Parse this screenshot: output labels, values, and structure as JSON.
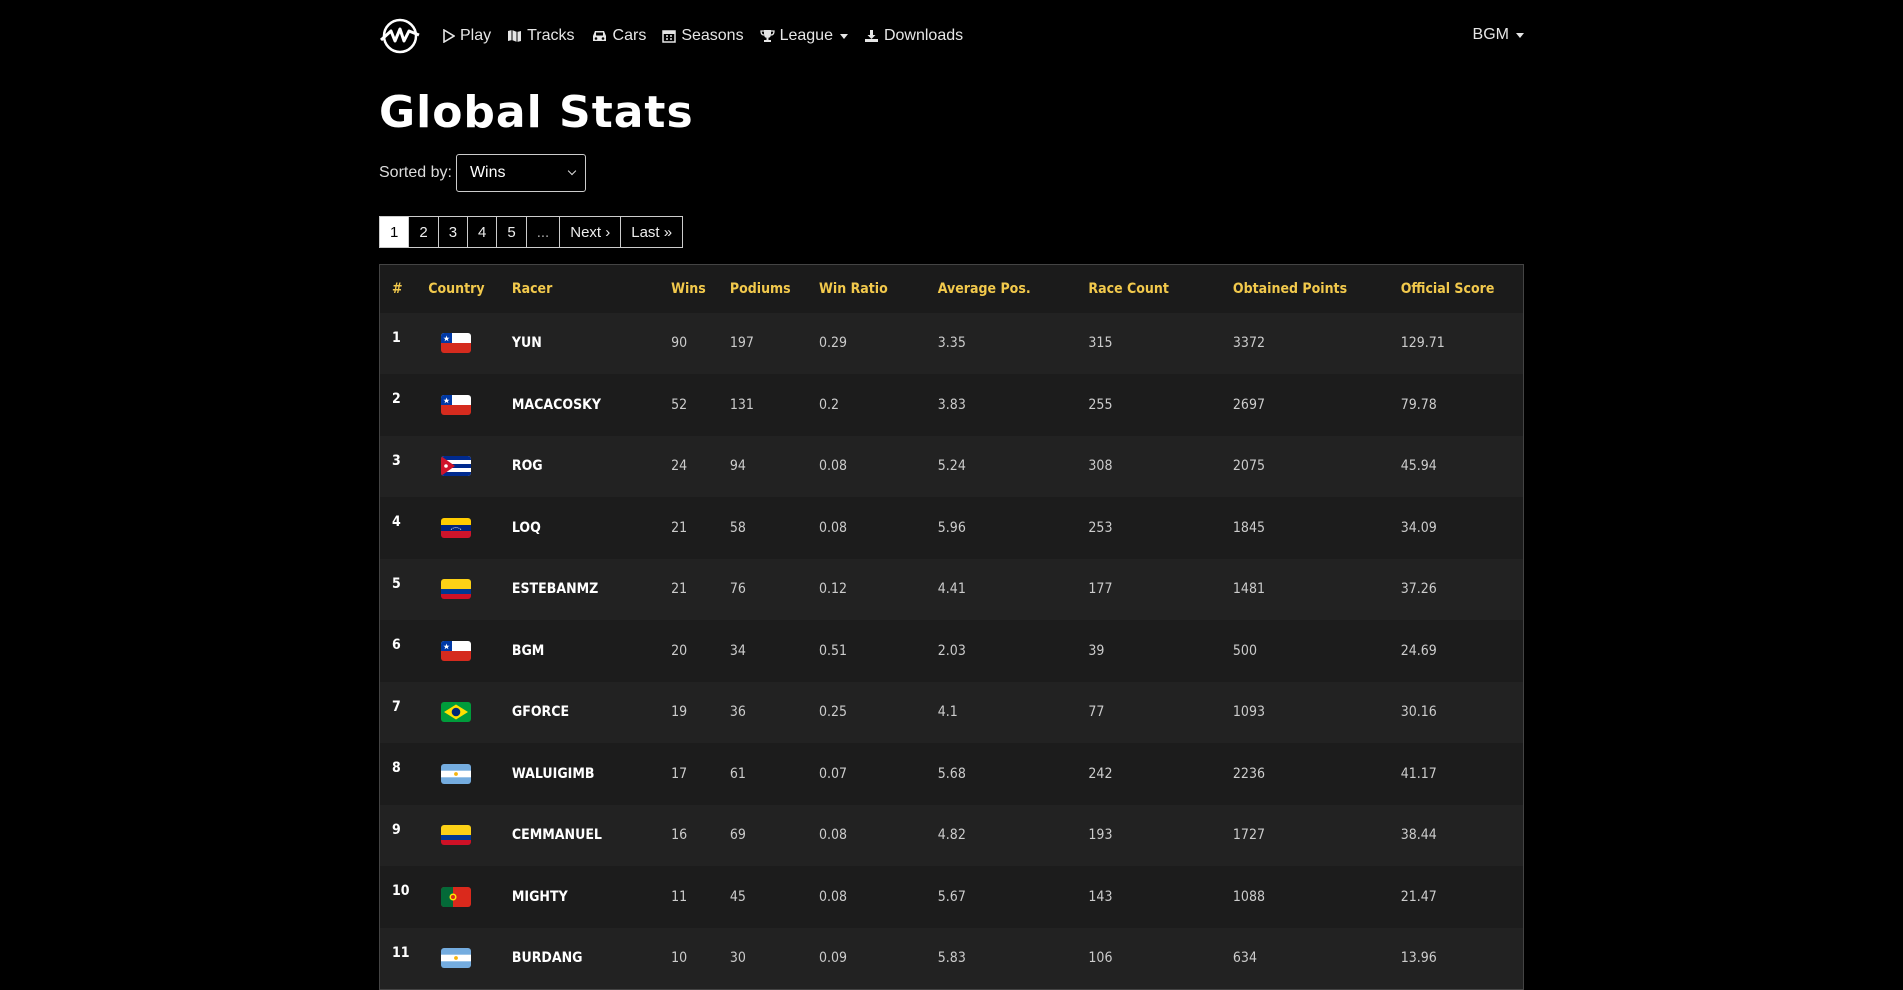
{
  "nav": {
    "items": [
      {
        "label": "Play",
        "icon": "play-icon"
      },
      {
        "label": "Tracks",
        "icon": "map-icon"
      },
      {
        "label": "Cars",
        "icon": "car-icon"
      },
      {
        "label": "Seasons",
        "icon": "calendar-icon"
      },
      {
        "label": "League",
        "icon": "trophy-icon",
        "dropdown": true
      },
      {
        "label": "Downloads",
        "icon": "download-icon"
      }
    ],
    "user": "BGM"
  },
  "page": {
    "title": "Global Stats",
    "sort_label": "Sorted by:",
    "sort_value": "Wins"
  },
  "pager": [
    "1",
    "2",
    "3",
    "4",
    "5",
    "...",
    "Next ›",
    "Last »"
  ],
  "table": {
    "headers": [
      "#",
      "Country",
      "Racer",
      "Wins",
      "Podiums",
      "Win Ratio",
      "Average Pos.",
      "Race Count",
      "Obtained Points",
      "Official Score"
    ],
    "rows": [
      {
        "pos": "1",
        "flag": "chile",
        "racer": "YUN",
        "wins": "90",
        "podiums": "197",
        "ratio": "0.29",
        "avg": "3.35",
        "races": "315",
        "points": "3372",
        "score": "129.71"
      },
      {
        "pos": "2",
        "flag": "chile",
        "racer": "MACACOSKY",
        "wins": "52",
        "podiums": "131",
        "ratio": "0.2",
        "avg": "3.83",
        "races": "255",
        "points": "2697",
        "score": "79.78"
      },
      {
        "pos": "3",
        "flag": "cuba",
        "racer": "ROG",
        "wins": "24",
        "podiums": "94",
        "ratio": "0.08",
        "avg": "5.24",
        "races": "308",
        "points": "2075",
        "score": "45.94"
      },
      {
        "pos": "4",
        "flag": "venezuela",
        "racer": "LOQ",
        "wins": "21",
        "podiums": "58",
        "ratio": "0.08",
        "avg": "5.96",
        "races": "253",
        "points": "1845",
        "score": "34.09"
      },
      {
        "pos": "5",
        "flag": "colombia",
        "racer": "ESTEBANMZ",
        "wins": "21",
        "podiums": "76",
        "ratio": "0.12",
        "avg": "4.41",
        "races": "177",
        "points": "1481",
        "score": "37.26"
      },
      {
        "pos": "6",
        "flag": "chile",
        "racer": "BGM",
        "wins": "20",
        "podiums": "34",
        "ratio": "0.51",
        "avg": "2.03",
        "races": "39",
        "points": "500",
        "score": "24.69"
      },
      {
        "pos": "7",
        "flag": "brazil",
        "racer": "GFORCE",
        "wins": "19",
        "podiums": "36",
        "ratio": "0.25",
        "avg": "4.1",
        "races": "77",
        "points": "1093",
        "score": "30.16"
      },
      {
        "pos": "8",
        "flag": "argentina",
        "racer": "WALUIGIMB",
        "wins": "17",
        "podiums": "61",
        "ratio": "0.07",
        "avg": "5.68",
        "races": "242",
        "points": "2236",
        "score": "41.17"
      },
      {
        "pos": "9",
        "flag": "colombia",
        "racer": "CEMMANUEL",
        "wins": "16",
        "podiums": "69",
        "ratio": "0.08",
        "avg": "4.82",
        "races": "193",
        "points": "1727",
        "score": "38.44"
      },
      {
        "pos": "10",
        "flag": "portugal",
        "racer": "MIGHTY",
        "wins": "11",
        "podiums": "45",
        "ratio": "0.08",
        "avg": "5.67",
        "races": "143",
        "points": "1088",
        "score": "21.47"
      },
      {
        "pos": "11",
        "flag": "argentina",
        "racer": "BURDANG",
        "wins": "10",
        "podiums": "30",
        "ratio": "0.09",
        "avg": "5.83",
        "races": "106",
        "points": "634",
        "score": "13.96"
      }
    ]
  },
  "colors": {
    "header_text": "#f2c94c",
    "background": "#000000",
    "row_odd": "#222222",
    "row_even": "#1c1c1c"
  }
}
